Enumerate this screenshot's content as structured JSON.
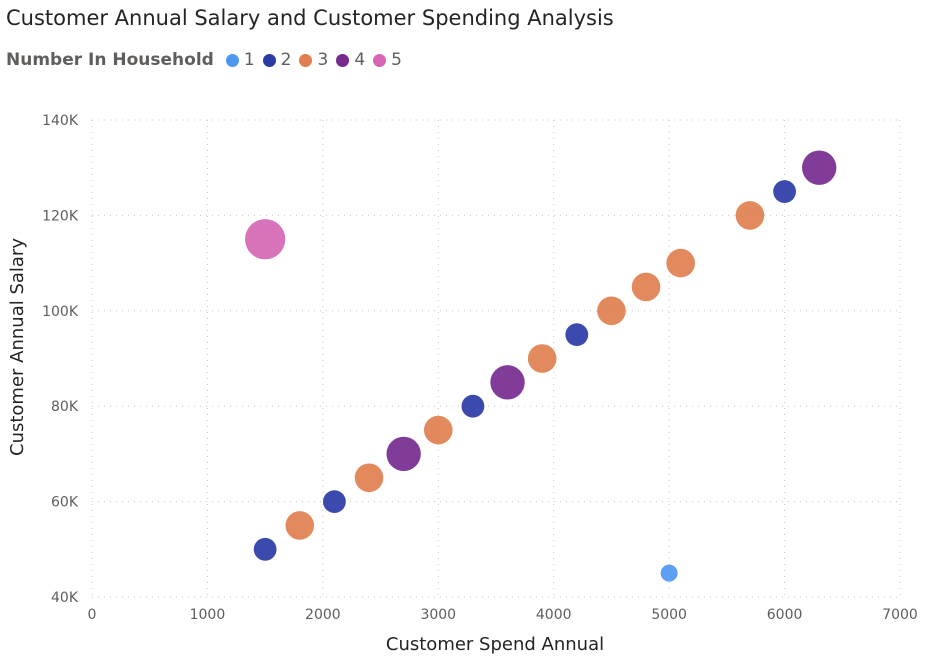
{
  "chart_data": {
    "type": "scatter",
    "title": "Customer Annual Salary and Customer Spending Analysis",
    "xlabel": "Customer Spend Annual",
    "ylabel": "Customer Annual Salary",
    "xlim": [
      0,
      7000
    ],
    "ylim": [
      40000,
      140000
    ],
    "x_ticks": [
      "0",
      "1000",
      "2000",
      "3000",
      "4000",
      "5000",
      "6000",
      "7000"
    ],
    "y_ticks": [
      "40K",
      "60K",
      "80K",
      "100K",
      "120K",
      "140K"
    ],
    "grid": true,
    "legend": {
      "title": "Number In Household",
      "placement": "top-left",
      "entries": [
        {
          "label": "1",
          "color": "#4f98f2"
        },
        {
          "label": "2",
          "color": "#2b3aa6"
        },
        {
          "label": "3",
          "color": "#e07f4f"
        },
        {
          "label": "4",
          "color": "#762a8f"
        },
        {
          "label": "5",
          "color": "#d566b3"
        }
      ]
    },
    "series": [
      {
        "name": "1",
        "color": "#4f98f2",
        "points": [
          {
            "x": 5000,
            "y": 45000
          }
        ]
      },
      {
        "name": "2",
        "color": "#2b3aa6",
        "points": [
          {
            "x": 1500,
            "y": 50000
          },
          {
            "x": 2100,
            "y": 60000
          },
          {
            "x": 3300,
            "y": 80000
          },
          {
            "x": 4200,
            "y": 95000
          },
          {
            "x": 6000,
            "y": 125000
          }
        ]
      },
      {
        "name": "3",
        "color": "#e07f4f",
        "points": [
          {
            "x": 1800,
            "y": 55000
          },
          {
            "x": 2400,
            "y": 65000
          },
          {
            "x": 3000,
            "y": 75000
          },
          {
            "x": 3900,
            "y": 90000
          },
          {
            "x": 4500,
            "y": 100000
          },
          {
            "x": 4800,
            "y": 105000
          },
          {
            "x": 5100,
            "y": 110000
          },
          {
            "x": 5700,
            "y": 120000
          }
        ]
      },
      {
        "name": "4",
        "color": "#762a8f",
        "points": [
          {
            "x": 2700,
            "y": 70000
          },
          {
            "x": 3600,
            "y": 85000
          },
          {
            "x": 6300,
            "y": 130000
          }
        ]
      },
      {
        "name": "5",
        "color": "#d566b3",
        "points": [
          {
            "x": 1500,
            "y": 115000
          }
        ]
      }
    ]
  }
}
